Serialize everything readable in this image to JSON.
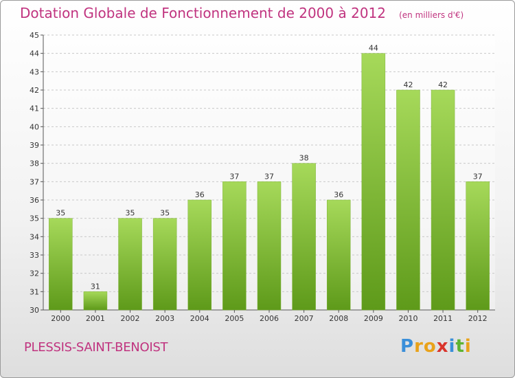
{
  "title": "Dotation Globale de Fonctionnement de 2000 à 2012",
  "unit": "(en milliers d'€)",
  "commune": "PLESSIS-SAINT-BENOIST",
  "logo": {
    "text": "Proxiti",
    "letters": [
      "P",
      "r",
      "o",
      "x",
      "i",
      "t",
      "i"
    ],
    "colors": [
      "#3a8fd9",
      "#e9a21a",
      "#e9a21a",
      "#d9342b",
      "#3a8fd9",
      "#5db332",
      "#e9a21a"
    ]
  },
  "colors": {
    "title": "#c0337f",
    "bar_light": "#a6d95a",
    "bar_dark": "#5e9a1a"
  },
  "chart_data": {
    "type": "bar",
    "title": "Dotation Globale de Fonctionnement de 2000 à 2012",
    "subtitle": "(en milliers d'€)",
    "categories": [
      "2000",
      "2001",
      "2002",
      "2003",
      "2004",
      "2005",
      "2006",
      "2007",
      "2008",
      "2009",
      "2010",
      "2011",
      "2012"
    ],
    "values": [
      35,
      31,
      35,
      35,
      36,
      37,
      37,
      38,
      36,
      44,
      42,
      42,
      37
    ],
    "ylim": [
      30,
      45
    ],
    "yticks": [
      30,
      31,
      32,
      33,
      34,
      35,
      36,
      37,
      38,
      39,
      40,
      41,
      42,
      43,
      44,
      45
    ],
    "grid": "horizontal dashed",
    "legend": "none"
  }
}
